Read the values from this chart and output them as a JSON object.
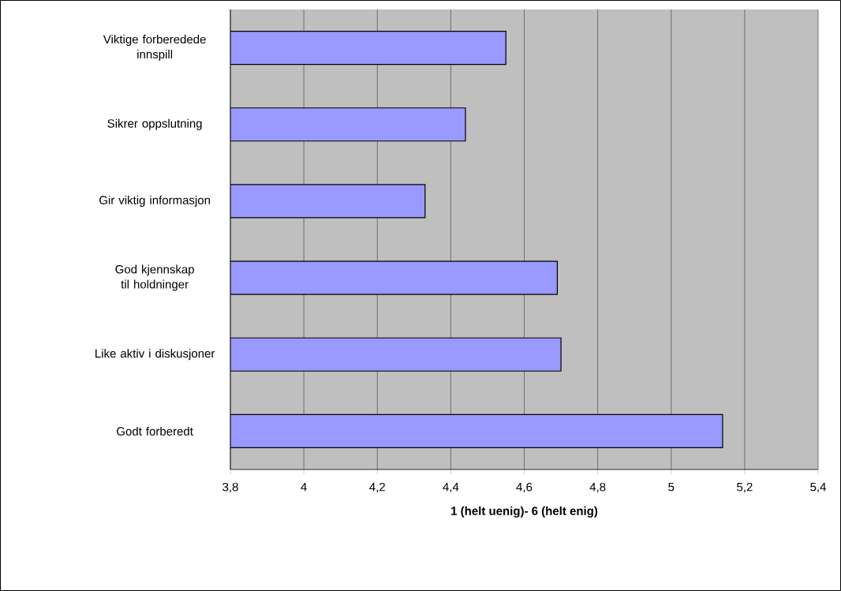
{
  "chart_data": {
    "type": "bar",
    "orientation": "horizontal",
    "xlabel": "1 (helt uenig)- 6 (helt enig)",
    "categories": [
      "Viktige forberedede innspill",
      "Sikrer oppslutning",
      "Gir viktig informasjon",
      "God kjennskap til holdninger",
      "Like aktiv i diskusjoner",
      "Godt forberedt"
    ],
    "values": [
      4.55,
      4.44,
      4.33,
      4.69,
      4.7,
      5.14
    ],
    "color": "#9999ff",
    "xlim": [
      3.8,
      5.4
    ],
    "xticks": [
      {
        "value": 3.8,
        "label": "3,8"
      },
      4,
      {
        "value": 4.2,
        "label": "4,2"
      },
      {
        "value": 4.4,
        "label": "4,4"
      },
      {
        "value": 4.6,
        "label": "4,6"
      },
      {
        "value": 4.8,
        "label": "4,8"
      },
      5,
      {
        "value": 5.2,
        "label": "5,2"
      },
      {
        "value": 5.4,
        "label": "5,4"
      }
    ],
    "grid": "x"
  }
}
